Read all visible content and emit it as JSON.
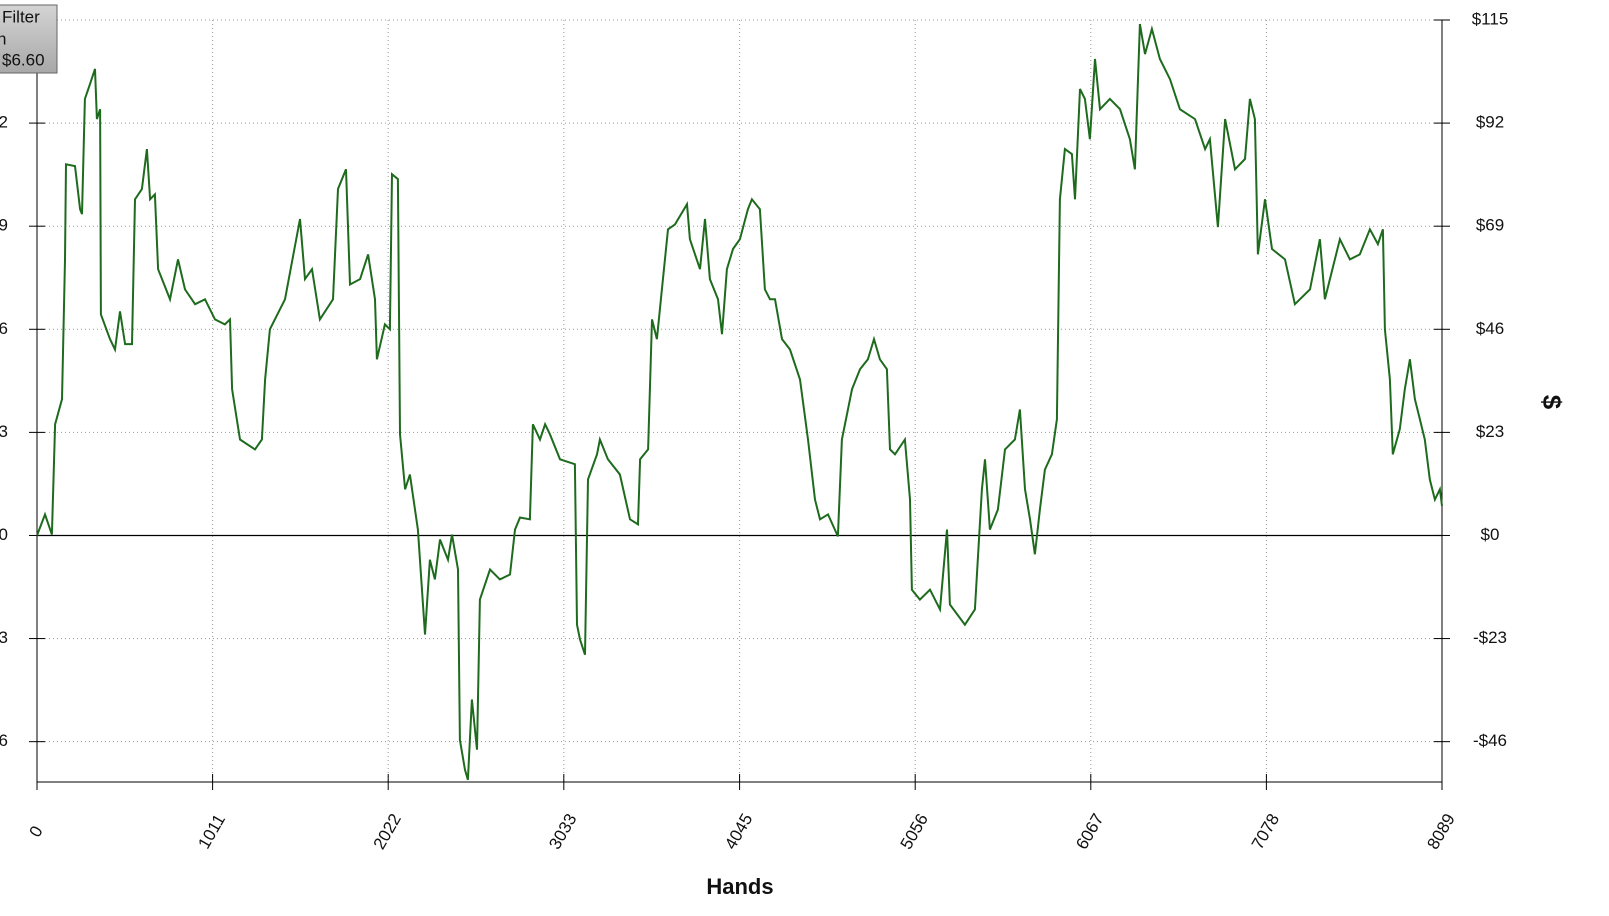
{
  "chart_data": {
    "type": "line",
    "x_label": "Hands",
    "y_label": "$",
    "xlim": [
      0,
      8089
    ],
    "xticks": [
      0,
      1011,
      2022,
      3033,
      4045,
      5056,
      6067,
      7078,
      8089
    ],
    "ylim": [
      -55,
      115
    ],
    "yticks": [
      {
        "value": -46,
        "label": "-$46"
      },
      {
        "value": -23,
        "label": "-$23"
      },
      {
        "value": 0,
        "label": "$0"
      },
      {
        "value": 23,
        "label": "$23"
      },
      {
        "value": 46,
        "label": "$46"
      },
      {
        "value": 69,
        "label": "$69"
      },
      {
        "value": 92,
        "label": "$92"
      },
      {
        "value": 115,
        "label": "$115"
      }
    ],
    "grid": true,
    "x": [
      0,
      46,
      86,
      104,
      144,
      161,
      167,
      219,
      248,
      259,
      276,
      305,
      334,
      345,
      363,
      368,
      420,
      449,
      478,
      507,
      547,
      564,
      604,
      633,
      651,
      679,
      697,
      766,
      812,
      852,
      910,
      967,
      1025,
      1082,
      1111,
      1123,
      1169,
      1255,
      1295,
      1313,
      1341,
      1428,
      1514,
      1543,
      1583,
      1629,
      1704,
      1733,
      1779,
      1802,
      1860,
      1906,
      1946,
      1957,
      2003,
      2032,
      2044,
      2078,
      2090,
      2119,
      2147,
      2193,
      2234,
      2262,
      2291,
      2320,
      2366,
      2389,
      2424,
      2435,
      2464,
      2481,
      2504,
      2533,
      2550,
      2608,
      2665,
      2723,
      2752,
      2781,
      2838,
      2855,
      2896,
      2925,
      2953,
      3011,
      3097,
      3109,
      3126,
      3155,
      3172,
      3224,
      3241,
      3287,
      3356,
      3414,
      3460,
      3472,
      3518,
      3541,
      3569,
      3598,
      3633,
      3673,
      3742,
      3759,
      3817,
      3846,
      3874,
      3921,
      3944,
      3972,
      4007,
      4047,
      4093,
      4116,
      4162,
      4191,
      4220,
      4249,
      4289,
      4335,
      4393,
      4439,
      4479,
      4508,
      4554,
      4611,
      4634,
      4692,
      4738,
      4784,
      4819,
      4853,
      4893,
      4911,
      4940,
      4997,
      5026,
      5037,
      5083,
      5141,
      5199,
      5239,
      5256,
      5342,
      5400,
      5440,
      5458,
      5486,
      5532,
      5573,
      5630,
      5659,
      5688,
      5717,
      5745,
      5774,
      5803,
      5843,
      5872,
      5889,
      5918,
      5958,
      5976,
      6005,
      6033,
      6062,
      6091,
      6120,
      6177,
      6235,
      6292,
      6321,
      6350,
      6379,
      6419,
      6465,
      6523,
      6580,
      6667,
      6725,
      6753,
      6799,
      6840,
      6897,
      6955,
      6983,
      7012,
      7029,
      7070,
      7110,
      7185,
      7242,
      7329,
      7386,
      7415,
      7501,
      7559,
      7616,
      7674,
      7720,
      7749,
      7760,
      7789,
      7806,
      7846,
      7875,
      7904,
      7933,
      7962,
      7990,
      8019,
      8048,
      8077,
      8089
    ],
    "series": [
      {
        "color": "#1e6b1e",
        "values": [
          0,
          4.7,
          0.2,
          24.8,
          30.4,
          61.6,
          82.8,
          82.4,
          72.8,
          71.7,
          97.4,
          100.7,
          104.1,
          92.9,
          95.1,
          49.3,
          43.8,
          41.5,
          50.0,
          42.7,
          42.7,
          75.0,
          77.3,
          86.2,
          75.0,
          76.1,
          59.4,
          52.7,
          61.6,
          54.9,
          51.6,
          52.7,
          48.2,
          47.1,
          48.2,
          32.6,
          21.4,
          19.2,
          21.4,
          34.8,
          46.0,
          52.7,
          70.6,
          57.2,
          59.4,
          48.2,
          52.7,
          77.3,
          81.7,
          56.0,
          57.2,
          62.7,
          52.7,
          39.3,
          47.1,
          46.0,
          80.6,
          79.5,
          22.6,
          10.3,
          13.6,
          1.3,
          -22.1,
          -5.4,
          -9.8,
          -0.9,
          -5.4,
          0.2,
          -7.6,
          -45.6,
          -52.3,
          -54.5,
          -36.6,
          -47.8,
          -14.3,
          -7.6,
          -9.8,
          -8.7,
          1.3,
          4.0,
          3.6,
          24.8,
          21.4,
          24.8,
          22.6,
          17.0,
          15.9,
          -19.9,
          -23.2,
          -26.6,
          12.5,
          18.1,
          21.4,
          17.0,
          13.6,
          3.6,
          2.5,
          17.0,
          19.2,
          48.2,
          43.8,
          54.9,
          68.3,
          69.4,
          73.9,
          66.1,
          59.4,
          70.6,
          57.2,
          52.7,
          44.9,
          59.4,
          63.9,
          66.1,
          72.8,
          75.0,
          72.8,
          54.9,
          52.7,
          52.7,
          43.8,
          41.5,
          34.8,
          21.4,
          8.0,
          3.6,
          4.7,
          -0.2,
          21.4,
          32.6,
          37.1,
          39.3,
          43.8,
          39.3,
          37.1,
          19.2,
          18.1,
          21.4,
          8.0,
          -12.1,
          -14.3,
          -12.1,
          -16.5,
          1.3,
          -15.4,
          -19.9,
          -16.5,
          10.3,
          17.0,
          1.3,
          5.8,
          19.2,
          21.4,
          28.1,
          10.3,
          3.6,
          -4.2,
          5.8,
          14.7,
          18.1,
          25.9,
          75.0,
          86.2,
          85.1,
          75.0,
          99.6,
          97.4,
          88.4,
          106.3,
          95.1,
          97.4,
          95.1,
          88.4,
          81.7,
          114.1,
          107.4,
          113.0,
          106.3,
          101.8,
          95.1,
          92.9,
          86.2,
          88.4,
          68.8,
          92.9,
          81.7,
          84.0,
          97.4,
          92.9,
          62.7,
          75.0,
          63.9,
          61.6,
          51.6,
          54.9,
          66.1,
          52.7,
          66.1,
          61.6,
          62.7,
          68.3,
          65.0,
          68.3,
          46.0,
          34.8,
          18.1,
          23.7,
          32.6,
          39.3,
          30.4,
          25.9,
          21.4,
          12.5,
          8.0,
          10.3,
          6.6
        ]
      }
    ]
  },
  "filter_box": {
    "title": "Filter",
    "lines": [
      "n",
      "$6.60"
    ]
  }
}
